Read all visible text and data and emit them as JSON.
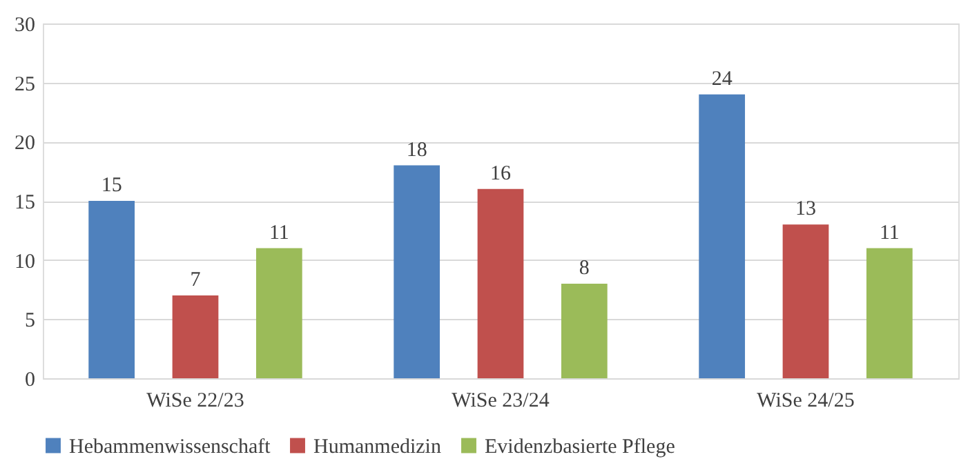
{
  "chart_data": {
    "type": "bar",
    "categories": [
      "WiSe 22/23",
      "WiSe 23/24",
      "WiSe 24/25"
    ],
    "series": [
      {
        "name": "Hebammenwissenschaft",
        "color": "#4f81bd",
        "values": [
          15,
          18,
          24
        ]
      },
      {
        "name": "Humanmedizin",
        "color": "#c0504d",
        "values": [
          7,
          16,
          13
        ]
      },
      {
        "name": "Evidenzbasierte Pflege",
        "color": "#9bbb59",
        "values": [
          11,
          8,
          11
        ]
      }
    ],
    "ylim": [
      0,
      30
    ],
    "yticks": [
      0,
      5,
      10,
      15,
      20,
      25,
      30
    ],
    "grid": "y",
    "legend": "bottom",
    "data_labels": true
  }
}
